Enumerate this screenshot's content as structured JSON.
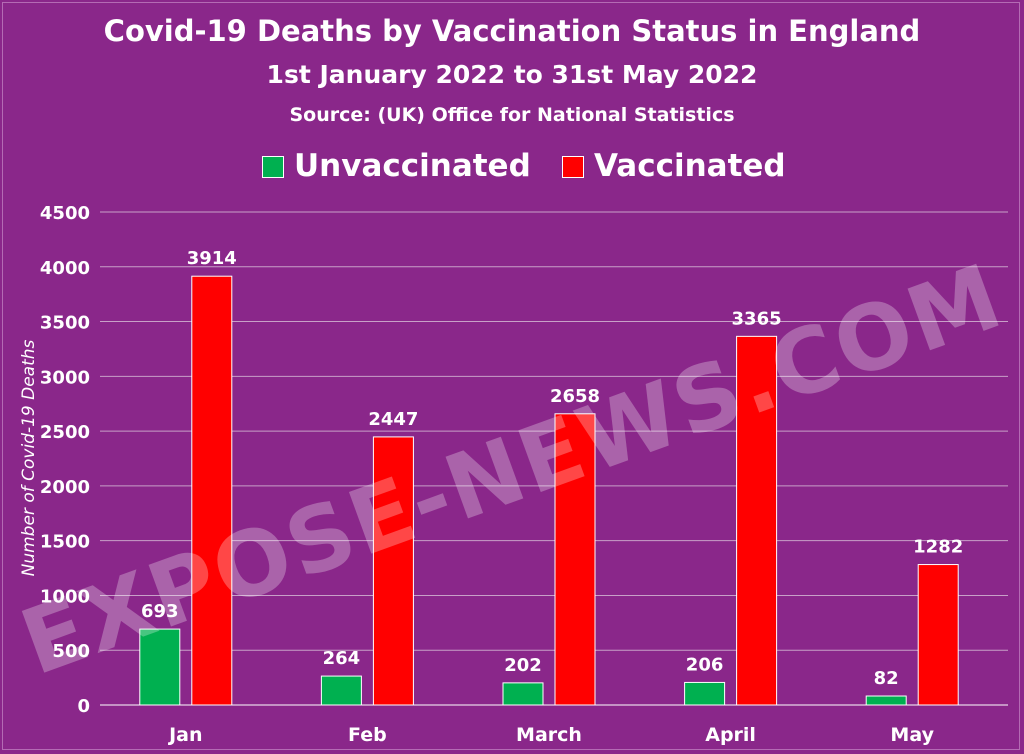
{
  "chart_data": {
    "type": "bar",
    "title": "Covid-19 Deaths by Vaccination Status in England",
    "subtitle": "1st January 2022 to 31st May 2022",
    "source": "Source:  (UK) Office for National Statistics",
    "ylabel": "Number of Covid-19 Deaths",
    "xlabel": "",
    "ylim": [
      0,
      4500
    ],
    "yticks": [
      0,
      500,
      1000,
      1500,
      2000,
      2500,
      3000,
      3500,
      4000,
      4500
    ],
    "grid": true,
    "legend_position": "top",
    "categories": [
      "Jan",
      "Feb",
      "March",
      "April",
      "May"
    ],
    "series": [
      {
        "name": "Unvaccinated",
        "color": "#00b050",
        "values": [
          693,
          264,
          202,
          206,
          82
        ]
      },
      {
        "name": "Vaccinated",
        "color": "#ff0000",
        "values": [
          3914,
          2447,
          2658,
          3365,
          1282
        ]
      }
    ]
  },
  "watermark": "EXPOSE-NEWS.COM",
  "colors": {
    "background": "#8a278a",
    "text": "#ffffff",
    "gridline": "#c8a0c8"
  }
}
